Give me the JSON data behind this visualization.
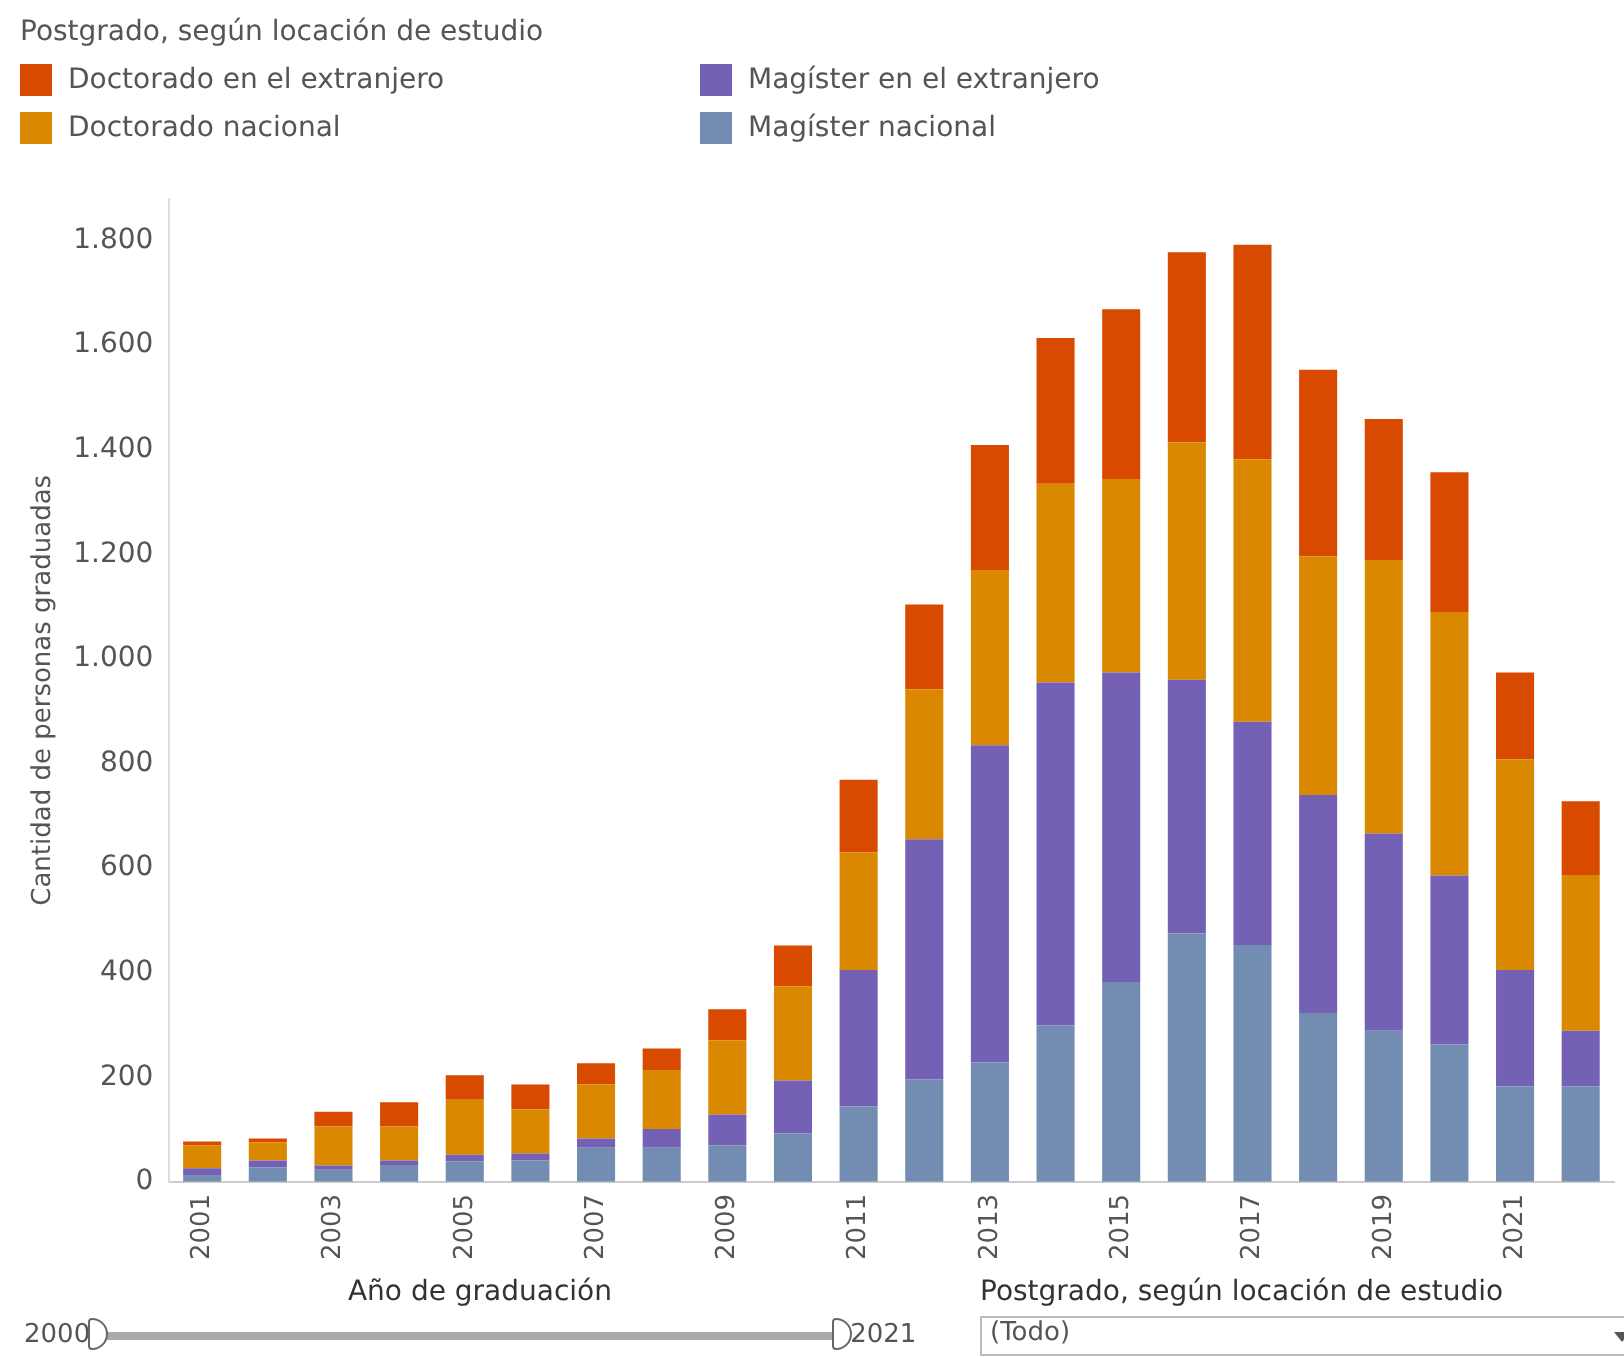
{
  "chart_data": {
    "type": "bar",
    "stacked": true,
    "legend_title": "Postgrado, según locación de estudio",
    "legend": "top left",
    "ylabel": "Cantidad de personas graduadas",
    "xlabel": "Año de graduación",
    "grid": false,
    "categories": [
      "2001",
      null,
      "2003",
      null,
      "2005",
      null,
      "2007",
      null,
      "2009",
      null,
      "2011",
      null,
      "2013",
      null,
      "2015",
      null,
      "2017",
      null,
      "2019",
      null,
      "2021",
      null
    ],
    "ylim": [
      0,
      1880
    ],
    "yticks": [
      0,
      {
        "value": 200,
        "label": "200"
      },
      {
        "value": 400,
        "label": "400"
      },
      {
        "value": 600,
        "label": "600"
      },
      {
        "value": 800,
        "label": "800"
      },
      {
        "value": 1000,
        "label": "1.000"
      },
      {
        "value": 1200,
        "label": "1.200"
      },
      {
        "value": 1400,
        "label": "1.400"
      },
      {
        "value": 1600,
        "label": "1.600"
      },
      {
        "value": 1800,
        "label": "1.800"
      }
    ],
    "series": [
      {
        "name": "Magíster nacional",
        "color": "#738cb2",
        "values": [
          13,
          28,
          23,
          32,
          39,
          41,
          65,
          65,
          70,
          93,
          144,
          196,
          228,
          299,
          382,
          475,
          453,
          323,
          289,
          263,
          183,
          183
        ]
      },
      {
        "name": "Magíster en el extranjero",
        "color": "#7460b4",
        "values": [
          13,
          13,
          8,
          9,
          13,
          13,
          18,
          36,
          59,
          101,
          261,
          459,
          607,
          656,
          592,
          485,
          427,
          417,
          377,
          323,
          222,
          106
        ]
      },
      {
        "name": "Doctorado nacional",
        "color": "#d98800",
        "values": [
          44,
          34,
          75,
          65,
          105,
          85,
          103,
          113,
          142,
          180,
          225,
          287,
          335,
          380,
          370,
          454,
          502,
          456,
          523,
          504,
          403,
          298
        ]
      },
      {
        "name": "Doctorado en el extranjero",
        "color": "#d84a00",
        "values": [
          7,
          8,
          28,
          46,
          47,
          47,
          41,
          41,
          59,
          78,
          139,
          162,
          239,
          279,
          325,
          364,
          410,
          357,
          270,
          267,
          166,
          141
        ]
      }
    ],
    "annotations": [
      "2000",
      "2021",
      "Postgrado, según locación de estudio",
      "(Todo)"
    ]
  }
}
